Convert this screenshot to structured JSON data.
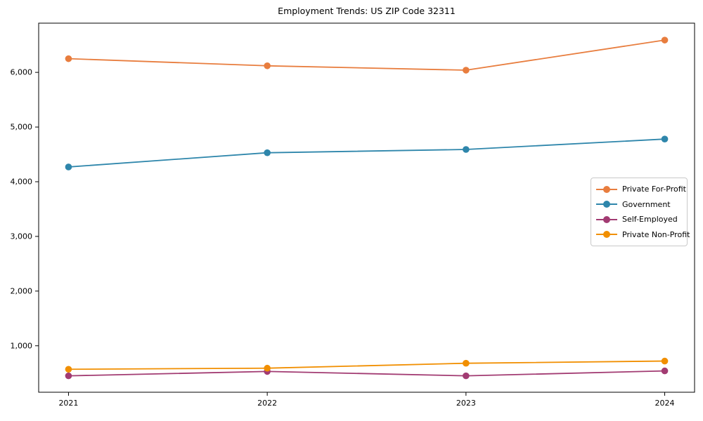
{
  "title": "Employment Trends: US ZIP Code 32311",
  "chart_data": {
    "type": "line",
    "title": "Employment Trends: US ZIP Code 32311",
    "xlabel": "",
    "ylabel": "",
    "x": [
      2021,
      2022,
      2023,
      2024
    ],
    "xtick_labels": [
      "2021",
      "2022",
      "2023",
      "2024"
    ],
    "yticks": [
      1000,
      2000,
      3000,
      4000,
      5000,
      6000
    ],
    "ytick_labels": [
      "1,000",
      "2,000",
      "3,000",
      "4,000",
      "5,000",
      "6,000"
    ],
    "ylim": [
      150,
      6900
    ],
    "grid": false,
    "legend_position": "center-right",
    "series": [
      {
        "name": "Private For-Profit",
        "color": "#E87D3E",
        "values": [
          6250,
          6120,
          6040,
          6590
        ]
      },
      {
        "name": "Government",
        "color": "#2E86AB",
        "values": [
          4270,
          4530,
          4590,
          4780
        ]
      },
      {
        "name": "Self-Employed",
        "color": "#A23B72",
        "values": [
          450,
          530,
          450,
          540
        ]
      },
      {
        "name": "Private Non-Profit",
        "color": "#F18F01",
        "values": [
          570,
          590,
          680,
          720
        ]
      }
    ]
  }
}
